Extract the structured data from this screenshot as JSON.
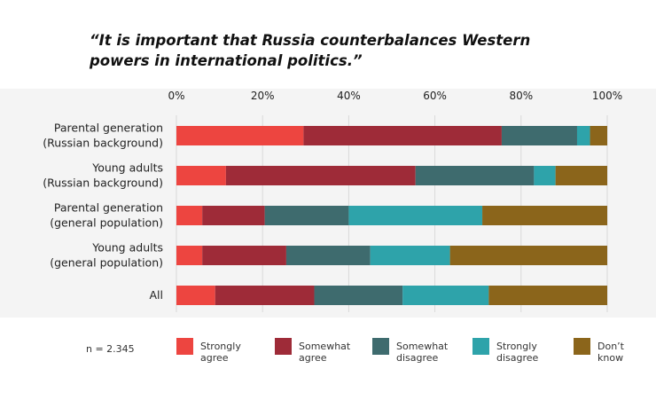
{
  "title": "“It is important that Russia counterbalances Western powers in international politics.”",
  "sample_note": "n = 2.345",
  "chart_data": {
    "type": "bar",
    "orientation": "horizontal",
    "stacked": true,
    "title": "“It is important that Russia counterbalances Western powers in international politics.”",
    "xlim": [
      0,
      100
    ],
    "x_ticks": [
      "0%",
      "20%",
      "40%",
      "60%",
      "80%",
      "100%"
    ],
    "grid": true,
    "legend_position": "bottom",
    "categories": [
      [
        "Parental generation",
        "(Russian background)"
      ],
      [
        "Young adults",
        "(Russian background)"
      ],
      [
        "Parental generation",
        "(general population)"
      ],
      [
        "Young adults",
        "(general population)"
      ],
      [
        "All"
      ]
    ],
    "series": [
      {
        "name": [
          "Strongly",
          "agree"
        ],
        "color": "#ed4540",
        "values": [
          29.5,
          11.5,
          6,
          6,
          9
        ]
      },
      {
        "name": [
          "Somewhat",
          "agree"
        ],
        "color": "#9e2b38",
        "values": [
          46,
          44,
          14.5,
          19.5,
          23
        ]
      },
      {
        "name": [
          "Somewhat",
          "disagree"
        ],
        "color": "#3e6b6e",
        "values": [
          17.5,
          27.5,
          19.5,
          19.5,
          20.5
        ]
      },
      {
        "name": [
          "Strongly",
          "disagree"
        ],
        "color": "#2ea3aa",
        "values": [
          3,
          5,
          31,
          18.5,
          20
        ]
      },
      {
        "name": [
          "Don’t",
          "know"
        ],
        "color": "#8b651b",
        "values": [
          4,
          12,
          29,
          36.5,
          27.5
        ]
      }
    ]
  }
}
